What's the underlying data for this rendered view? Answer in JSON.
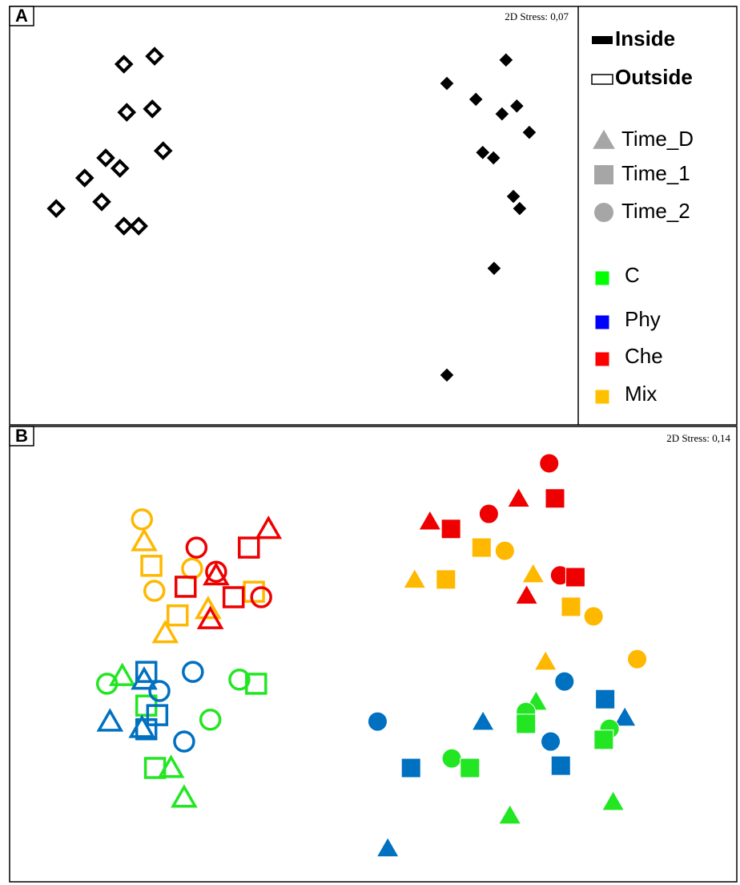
{
  "chart_data": [
    {
      "type": "scatter",
      "label": "A",
      "stress": "2D Stress: 0,07",
      "xlim": [
        0,
        100
      ],
      "ylim": [
        0,
        100
      ],
      "series": [
        {
          "color": "#000000",
          "marker": "diamond",
          "filled": false,
          "x": [
            20.1,
            25.5,
            20.6,
            25.1,
            27.0,
            16.9,
            19.4,
            13.2,
            16.2,
            8.2,
            20.1,
            22.7
          ],
          "y": [
            86.2,
            88.1,
            74.7,
            75.5,
            65.5,
            63.8,
            61.3,
            59.0,
            53.3,
            51.7,
            47.5,
            47.5
          ]
        },
        {
          "color": "#000000",
          "marker": "diamond",
          "filled": true,
          "x": [
            87.3,
            76.9,
            82.0,
            89.2,
            86.6,
            91.4,
            83.2,
            85.1,
            88.6,
            89.7,
            85.2,
            76.9
          ],
          "y": [
            87.2,
            81.6,
            77.8,
            76.2,
            74.3,
            69.9,
            65.1,
            63.8,
            54.6,
            51.7,
            37.4,
            11.9
          ]
        }
      ],
      "legend": {
        "location": [
          {
            "name": "Inside",
            "filled": true,
            "color": "#000000"
          },
          {
            "name": "Outside",
            "filled": false,
            "color": "#000000"
          }
        ],
        "time_color": "#a6a6a6",
        "time": [
          {
            "name": "Time_D",
            "marker": "triangle"
          },
          {
            "name": "Time_1",
            "marker": "square"
          },
          {
            "name": "Time_2",
            "marker": "circle"
          }
        ],
        "treatment": [
          {
            "name": "C",
            "color": "#00ff00"
          },
          {
            "name": "Phy",
            "color": "#0000ff"
          },
          {
            "name": "Che",
            "color": "#ff0000"
          },
          {
            "name": "Mix",
            "color": "#ffc000"
          }
        ]
      }
    },
    {
      "type": "scatter",
      "label": "B",
      "stress": "2D Stress: 0,14",
      "xlim": [
        0,
        100
      ],
      "ylim": [
        0,
        100
      ],
      "series": [
        {
          "color": "#ffb800",
          "filled": false,
          "markers": [
            "circle",
            "triangle",
            "square",
            "circle",
            "circle",
            "square",
            "triangle",
            "triangle",
            "square"
          ],
          "x": [
            18.2,
            18.5,
            19.5,
            19.9,
            25.1,
            23.1,
            21.4,
            27.3,
            33.6
          ],
          "y": [
            79.6,
            74.8,
            69.4,
            63.9,
            68.8,
            58.5,
            54.6,
            59.9,
            63.7
          ]
        },
        {
          "color": "#ee0000",
          "filled": false,
          "markers": [
            "circle",
            "circle",
            "triangle",
            "square",
            "square",
            "triangle",
            "square",
            "triangle",
            "circle"
          ],
          "x": [
            25.7,
            28.4,
            35.6,
            32.9,
            30.8,
            28.4,
            24.2,
            27.6,
            34.6
          ],
          "y": [
            73.4,
            68.1,
            77.5,
            73.4,
            62.5,
            67.3,
            64.8,
            57.7,
            62.5
          ]
        },
        {
          "color": "#22e622",
          "filled": false,
          "markers": [
            "circle",
            "triangle",
            "circle",
            "square",
            "circle",
            "square",
            "triangle",
            "triangle",
            "square"
          ],
          "x": [
            13.4,
            15.5,
            31.6,
            33.9,
            27.6,
            20.0,
            22.2,
            24.0,
            18.8
          ],
          "y": [
            43.5,
            45.2,
            44.4,
            43.5,
            35.6,
            25.0,
            25.0,
            18.5,
            38.7
          ]
        },
        {
          "color": "#0070c0",
          "filled": false,
          "markers": [
            "square",
            "triangle",
            "circle",
            "circle",
            "triangle",
            "square",
            "triangle",
            "square",
            "circle"
          ],
          "x": [
            18.8,
            18.5,
            20.6,
            25.2,
            13.8,
            20.3,
            18.2,
            18.8,
            24.0
          ],
          "y": [
            46.1,
            44.4,
            41.9,
            46.1,
            35.2,
            36.6,
            33.8,
            33.5,
            30.8
          ]
        },
        {
          "color": "#ee0000",
          "filled": true,
          "markers": [
            "circle",
            "triangle",
            "square",
            "circle",
            "triangle",
            "square",
            "circle",
            "square",
            "triangle"
          ],
          "x": [
            74.2,
            70.0,
            75.0,
            65.9,
            57.8,
            60.7,
            75.7,
            77.8,
            71.1
          ],
          "y": [
            91.9,
            84.2,
            84.2,
            80.8,
            79.2,
            77.5,
            67.3,
            66.9,
            62.9
          ]
        },
        {
          "color": "#ffb800",
          "filled": true,
          "markers": [
            "square",
            "circle",
            "triangle",
            "triangle",
            "square",
            "square",
            "circle",
            "circle",
            "triangle"
          ],
          "x": [
            64.9,
            68.1,
            72.0,
            55.7,
            60.0,
            77.2,
            80.3,
            86.3,
            73.7
          ],
          "y": [
            73.4,
            72.7,
            67.6,
            66.4,
            66.4,
            60.4,
            58.3,
            48.9,
            48.4
          ]
        },
        {
          "color": "#0070c0",
          "filled": true,
          "markers": [
            "circle",
            "square",
            "triangle",
            "triangle",
            "circle",
            "circle",
            "square",
            "square",
            "triangle"
          ],
          "x": [
            76.3,
            81.9,
            84.6,
            65.1,
            50.6,
            74.4,
            75.8,
            55.2,
            52.0
          ],
          "y": [
            44.0,
            40.1,
            36.1,
            35.2,
            35.2,
            30.8,
            25.5,
            25.0,
            7.4
          ]
        },
        {
          "color": "#22e622",
          "filled": true,
          "markers": [
            "triangle",
            "circle",
            "square",
            "circle",
            "square",
            "circle",
            "square",
            "triangle",
            "triangle"
          ],
          "x": [
            72.4,
            71.0,
            71.0,
            82.5,
            81.7,
            60.8,
            63.3,
            83.0,
            68.8
          ],
          "y": [
            39.6,
            37.3,
            34.7,
            33.6,
            31.2,
            27.1,
            25.0,
            17.6,
            14.6
          ]
        }
      ]
    }
  ]
}
